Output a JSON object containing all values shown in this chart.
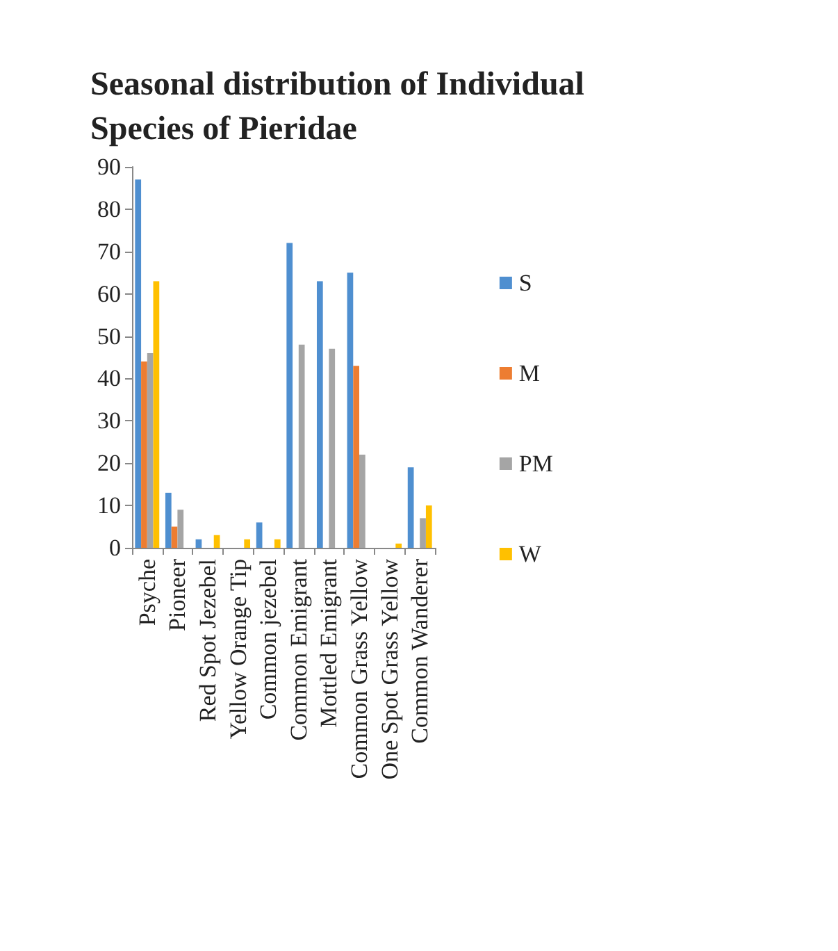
{
  "chart_data": {
    "type": "bar",
    "title": "Seasonal distribution of Individual Species of Pieridae",
    "categories": [
      "Psyche",
      "Pioneer",
      "Red Spot Jezebel",
      "Yellow Orange Tip",
      "Common jezebel",
      "Common Emigrant",
      "Mottled Emigrant",
      "Common Grass Yellow",
      "One Spot Grass Yellow",
      "Common Wanderer"
    ],
    "series": [
      {
        "name": "S",
        "color": "#4f8fd0",
        "values": [
          87,
          13,
          2,
          0,
          6,
          72,
          63,
          65,
          0,
          19
        ]
      },
      {
        "name": "M",
        "color": "#ed7d31",
        "values": [
          44,
          5,
          0,
          0,
          0,
          0,
          0,
          43,
          0,
          0
        ]
      },
      {
        "name": "PM",
        "color": "#a5a5a5",
        "values": [
          46,
          9,
          0,
          0,
          0,
          48,
          47,
          22,
          0,
          7
        ]
      },
      {
        "name": "W",
        "color": "#ffc000",
        "values": [
          63,
          0,
          3,
          2,
          2,
          0,
          0,
          0,
          1,
          10
        ]
      }
    ],
    "ylim": [
      0,
      90
    ],
    "yticks": [
      0,
      10,
      20,
      30,
      40,
      50,
      60,
      70,
      80,
      90
    ],
    "grid": false,
    "legend": "right"
  }
}
